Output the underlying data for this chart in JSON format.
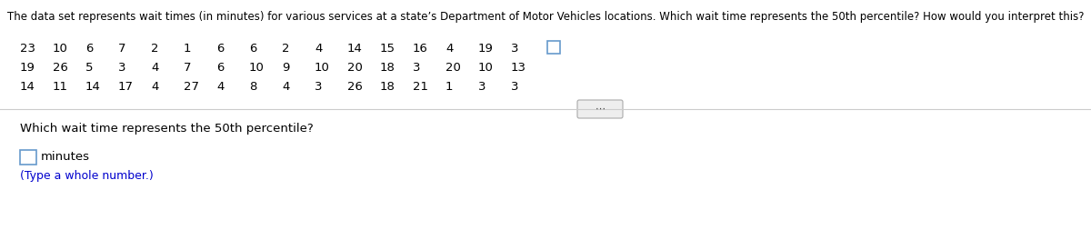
{
  "title": "The data set represents wait times (in minutes) for various services at a state’s Department of Motor Vehicles locations. Which wait time represents the 50th percentile? How would you interpret this?",
  "row1": [
    23,
    10,
    6,
    7,
    2,
    1,
    6,
    6,
    2,
    4,
    14,
    15,
    16,
    4,
    19,
    3
  ],
  "row2": [
    19,
    26,
    5,
    3,
    4,
    7,
    6,
    10,
    9,
    10,
    20,
    18,
    3,
    20,
    10,
    13
  ],
  "row3": [
    14,
    11,
    14,
    17,
    4,
    27,
    4,
    8,
    4,
    3,
    26,
    18,
    21,
    1,
    3,
    3
  ],
  "question": "Which wait time represents the 50th percentile?",
  "answer_label": "minutes",
  "hint": "(Type a whole number.)",
  "bg_color": "#ffffff",
  "text_color": "#000000",
  "blue_color": "#0000cd",
  "checkbox_color": "#6699cc",
  "separator_color": "#cccccc",
  "btn_color": "#eeeeee",
  "btn_border": "#aaaaaa",
  "title_fontsize": 8.5,
  "data_fontsize": 9.5,
  "question_fontsize": 9.5,
  "hint_fontsize": 9.0
}
